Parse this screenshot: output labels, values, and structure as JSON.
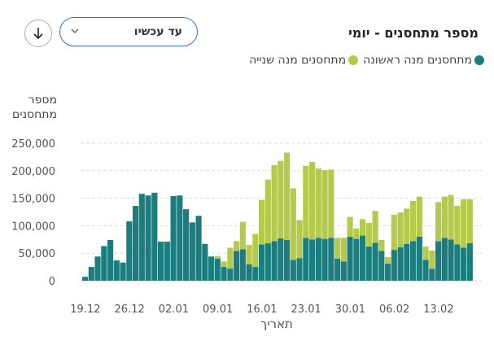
{
  "header": {
    "title": "מספר מתחסנים - יומי",
    "dropdown": "עד עכשיו"
  },
  "chart_data": {
    "type": "stacked_bar",
    "y_label": "מספר מתחסנים",
    "x_label": "תאריך",
    "categories": [
      "19.12",
      null,
      null,
      null,
      null,
      null,
      null,
      "26.12",
      null,
      null,
      null,
      null,
      null,
      null,
      "02.01",
      null,
      null,
      null,
      null,
      null,
      null,
      "09.01",
      null,
      null,
      null,
      null,
      null,
      null,
      "16.01",
      null,
      null,
      null,
      null,
      null,
      null,
      "23.01",
      null,
      null,
      null,
      null,
      null,
      null,
      "30.01",
      null,
      null,
      null,
      null,
      null,
      null,
      "06.02",
      null,
      null,
      null,
      null,
      null,
      null,
      "13.02",
      null,
      null,
      null,
      null,
      null
    ],
    "series": [
      {
        "name": "מתחסנים מנה ראשונה",
        "color": "#1b7d7d",
        "values": [
          7000,
          25000,
          44000,
          63000,
          74000,
          37000,
          33000,
          108000,
          136000,
          158000,
          155000,
          160000,
          71000,
          71000,
          154000,
          155000,
          130000,
          106000,
          118000,
          67000,
          44000,
          40000,
          25000,
          22000,
          54000,
          57000,
          30000,
          25000,
          66000,
          68000,
          72000,
          77000,
          74000,
          38000,
          41000,
          78000,
          75000,
          78000,
          76000,
          78000,
          40000,
          35000,
          80000,
          76000,
          82000,
          62000,
          69000,
          54000,
          31000,
          56000,
          61000,
          67000,
          72000,
          80000,
          38000,
          22000,
          72000,
          78000,
          75000,
          66000,
          60000,
          68000
        ]
      },
      {
        "name": "מתחסנים מנה שנייה",
        "color": "#b5c94c",
        "values": [
          0,
          0,
          0,
          0,
          0,
          0,
          0,
          0,
          0,
          0,
          0,
          0,
          0,
          0,
          0,
          0,
          0,
          0,
          0,
          0,
          0,
          5000,
          10000,
          38000,
          18000,
          50000,
          35000,
          60000,
          81000,
          116000,
          138000,
          141000,
          159000,
          130000,
          69000,
          131000,
          141000,
          126000,
          125000,
          124000,
          38000,
          43000,
          36000,
          19000,
          30000,
          43000,
          58000,
          20000,
          12000,
          64000,
          63000,
          64000,
          73000,
          73000,
          24000,
          33000,
          71000,
          75000,
          81000,
          70000,
          88000,
          80000
        ]
      }
    ],
    "ylim": [
      0,
      250000
    ],
    "yticks": [
      0,
      {
        "value": 50000,
        "label": "50,000"
      },
      {
        "value": 100000,
        "label": "100,000"
      },
      {
        "value": 150000,
        "label": "150,000"
      },
      {
        "value": 200000,
        "label": "200,000"
      },
      {
        "value": 250000,
        "label": "250,000"
      }
    ],
    "grid": true
  }
}
